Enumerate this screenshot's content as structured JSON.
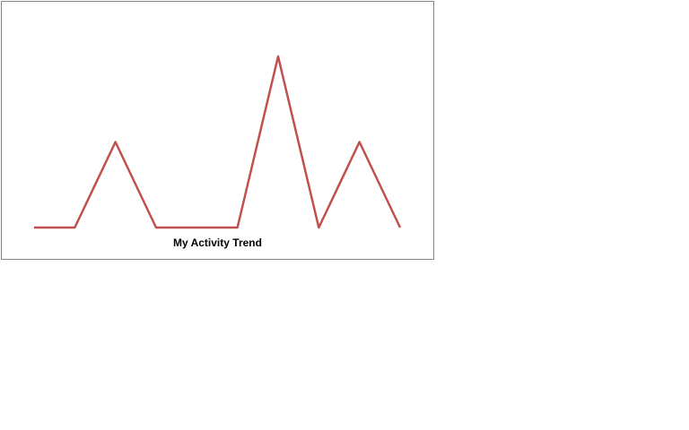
{
  "chart_data": {
    "type": "line",
    "title": "My Activity Trend",
    "series": [
      {
        "values": [
          0,
          0,
          1,
          0,
          0,
          0,
          2,
          0,
          1,
          0
        ],
        "color": "#c0504d"
      }
    ],
    "ylim": [
      0,
      2
    ],
    "grid": false,
    "legend": "none",
    "axes_visible": false
  }
}
